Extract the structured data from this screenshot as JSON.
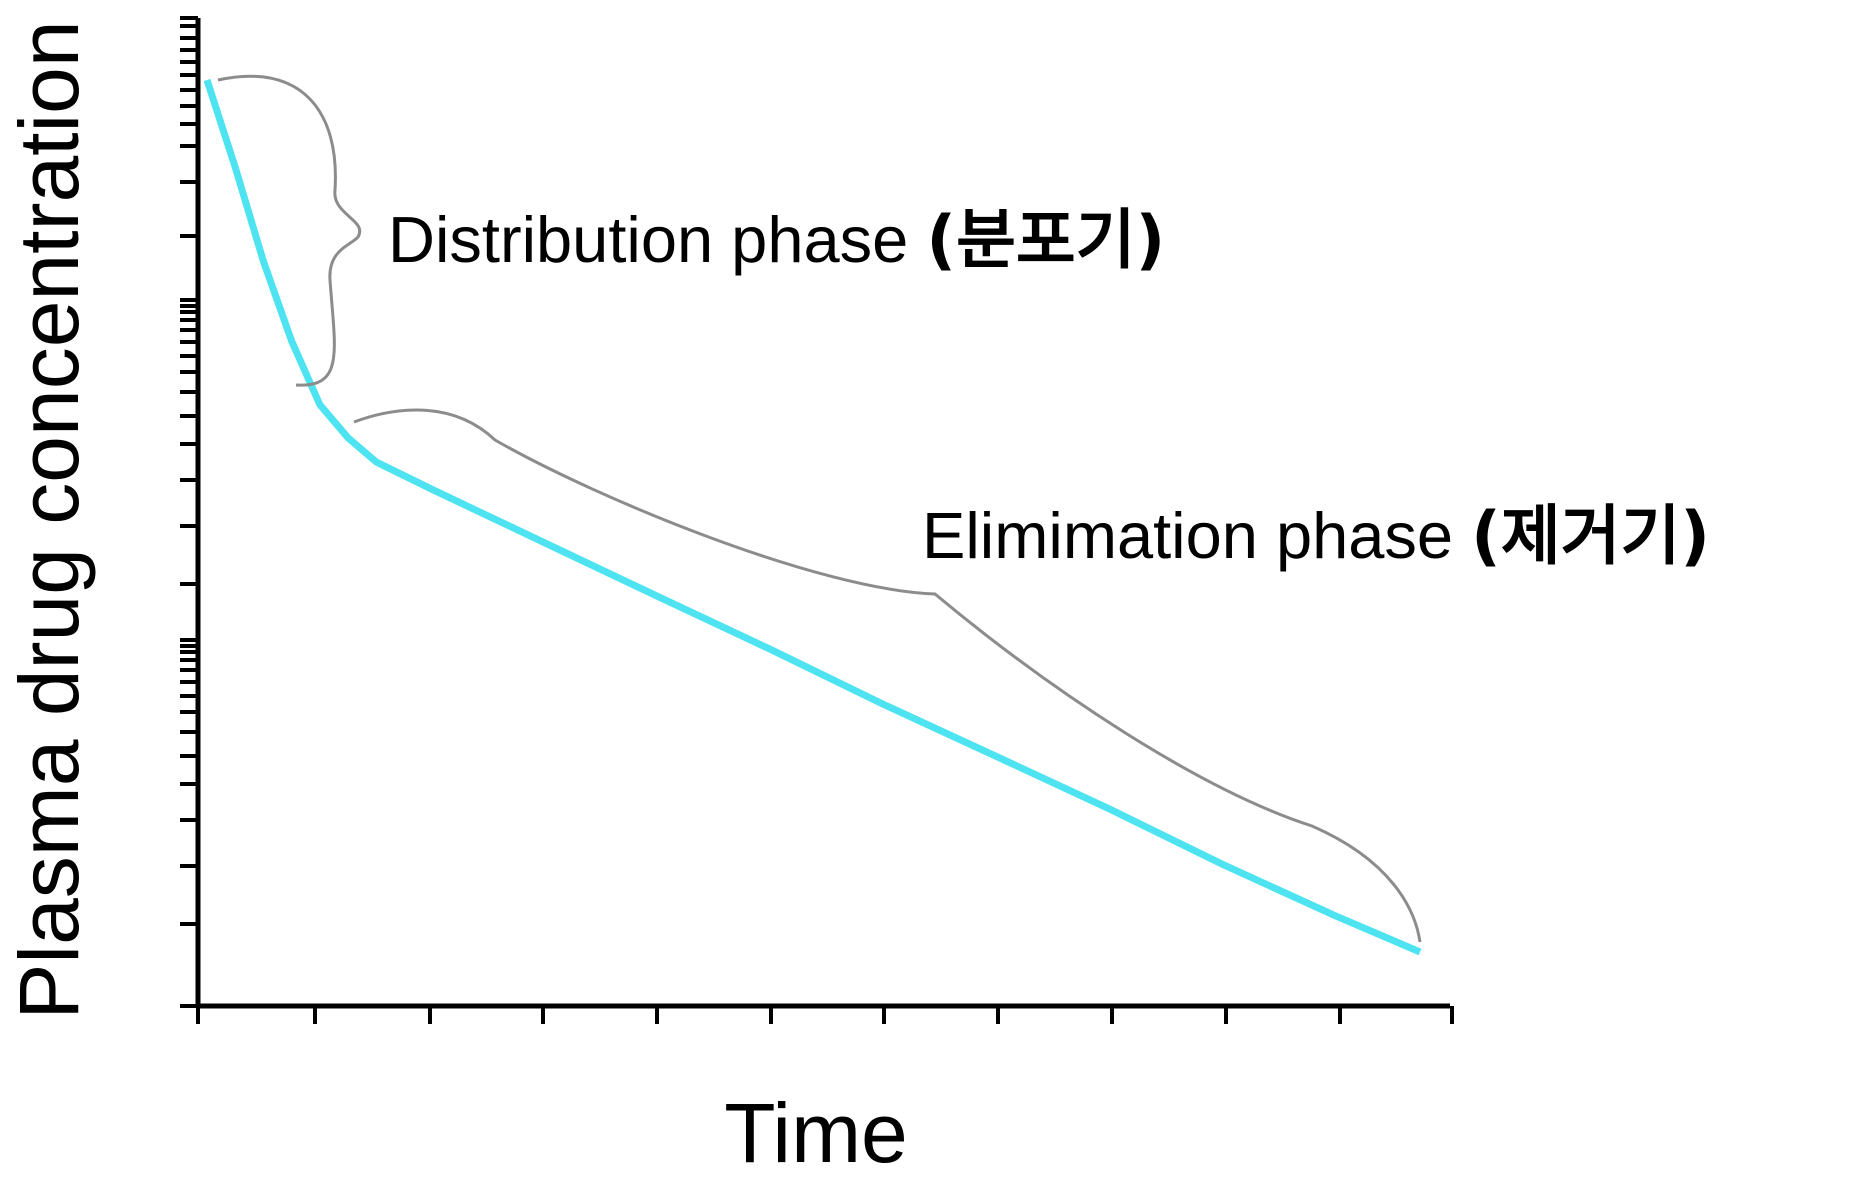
{
  "chart_data": {
    "type": "line",
    "xlabel": "Time",
    "ylabel": "Plasma drug concentration",
    "y_scale": "log",
    "grid": false,
    "tick_labels": false,
    "series": [
      {
        "x": [
          0,
          0.25,
          0.5,
          0.75,
          1.0,
          1.25,
          1.5,
          2,
          3,
          4,
          5,
          6,
          7,
          8,
          9,
          10,
          10.75
        ],
        "y": [
          100,
          73,
          52,
          39,
          31,
          27.5,
          25.2,
          22.8,
          18.8,
          15.5,
          12.8,
          10.5,
          8.7,
          7.2,
          5.9,
          4.9,
          4.3
        ]
      }
    ],
    "color": "#4de3f0",
    "annotations": [
      {
        "text": "Distribution phase",
        "ko": "(분포기)"
      },
      {
        "text": "Elimimation phase",
        "ko": "(제거기)"
      }
    ],
    "bracket_color": "#8c8c8c"
  }
}
